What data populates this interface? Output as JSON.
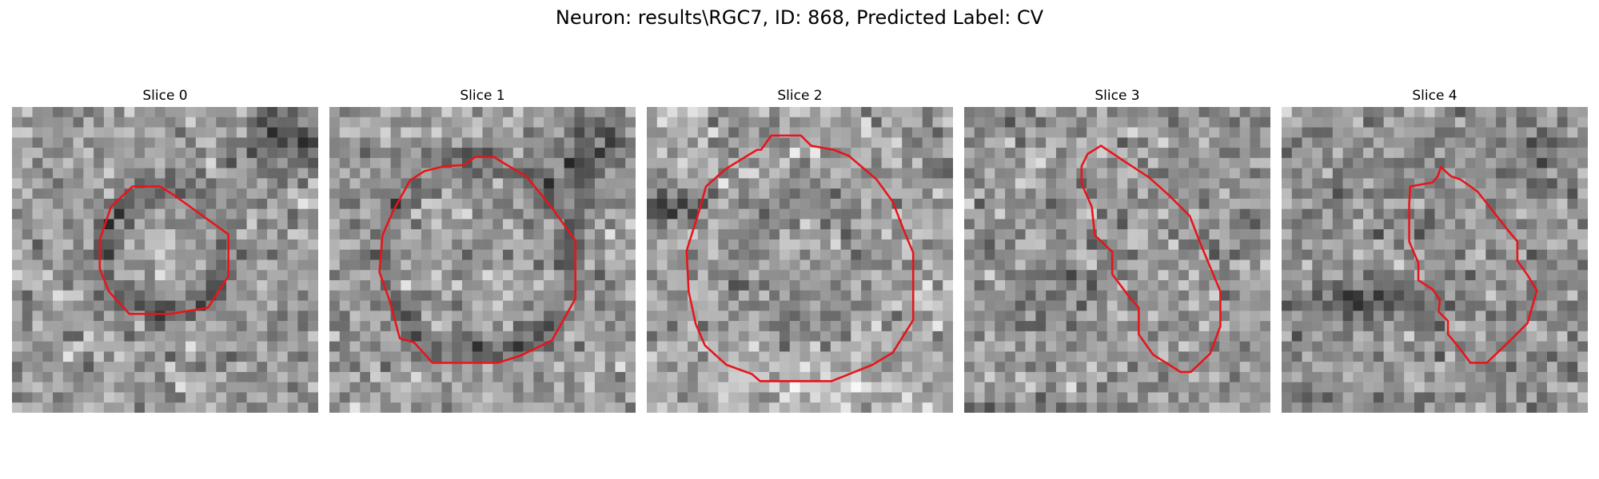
{
  "figure": {
    "title": "Neuron: results\\RGC7, ID: 868, Predicted Label: CV",
    "panels": [
      {
        "title": "Slice 0"
      },
      {
        "title": "Slice 1"
      },
      {
        "title": "Slice 2"
      },
      {
        "title": "Slice 3"
      },
      {
        "title": "Slice 4"
      }
    ],
    "contour_color": "#e8141b"
  }
}
